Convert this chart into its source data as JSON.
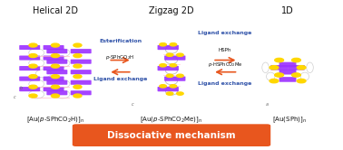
{
  "title_left": "Helical 2D",
  "title_center": "Zigzag 2D",
  "title_right": "1D",
  "arrow_left_text_top": "Esterification",
  "arrow_left_text_mid": "p-SPhCO₂H",
  "arrow_left_text_bot": "Ligand exchange",
  "arrow_right_text_top": "Ligand exchange",
  "arrow_right_text_mid1": "HSPh",
  "arrow_right_text_mid2": "p-HSPhCO₂Me",
  "arrow_right_text_bot": "Ligand exchange",
  "banner_text": "Dissociative mechanism",
  "banner_color": "#E8561E",
  "banner_text_color": "#FFFFFF",
  "arrow_color": "#E8561E",
  "text_color_blue": "#3355AA",
  "text_color_dark": "#111111",
  "bg_color": "#FFFFFF",
  "purple": "#9B30FF",
  "yellow": "#FFD700",
  "grey_ring": "#BBBBBB",
  "pink_line": "#FFB6C1"
}
